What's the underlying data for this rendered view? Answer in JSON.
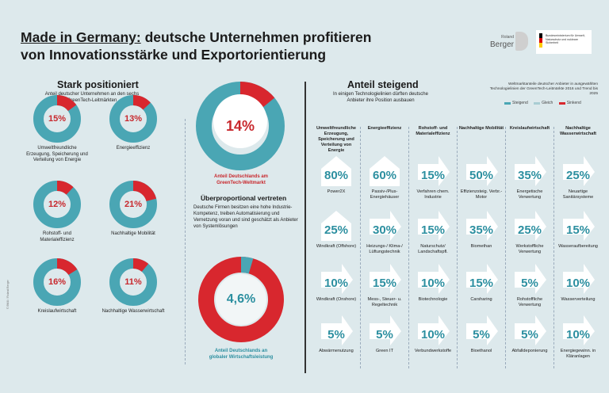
{
  "title": {
    "underlined": "Made in Germany:",
    "rest": " deutsche Unternehmen profitieren",
    "line2": "von Innovationsstärke und Exportorientierung"
  },
  "logos": {
    "rb_small": "Roland",
    "rb_big": "Berger",
    "ministry": "Bundesministerium für Umwelt, Naturschutz und nukleare Sicherheit"
  },
  "colors": {
    "teal": "#4aa6b4",
    "red": "#d8272e",
    "accent_text": "#c8282d",
    "value_text": "#2c8fa0"
  },
  "left": {
    "heading": "Stark positioniert",
    "subtitle": "Anteil deutscher Unternehmen an den sechs GreenTech-Leitmärkten",
    "donuts": [
      {
        "pct": "15%",
        "share": 0.15,
        "label": "Umweltfreundliche Erzeugung, Speicherung und Verteilung von Energie"
      },
      {
        "pct": "13%",
        "share": 0.13,
        "label": "Energieeffizienz"
      },
      {
        "pct": "12%",
        "share": 0.12,
        "label": "Rohstoff- und Materialeffizienz"
      },
      {
        "pct": "21%",
        "share": 0.21,
        "label": "Nachhaltige Mobilität"
      },
      {
        "pct": "16%",
        "share": 0.16,
        "label": "Kreislaufwirtschaft"
      },
      {
        "pct": "11%",
        "share": 0.11,
        "label": "Nachhaltige Wasserwirtschaft"
      }
    ]
  },
  "middle": {
    "big1": {
      "pct": "14%",
      "share": 0.14,
      "caption": "Anteil Deutschlands am GreenTech-Weltmarkt"
    },
    "heading": "Überproportional vertreten",
    "text": "Deutsche Firmen besitzen eine hohe Industrie-Kompetenz, treiben Automatisierung und Vernetzung voran und sind geschätzt als Anbieter von Systemlösungen",
    "big2": {
      "pct": "4,6%",
      "share": 0.046,
      "caption": "Anteil Deutschlands an globaler Wirtschaftsleistung"
    }
  },
  "right": {
    "heading": "Anteil steigend",
    "subtitle": "In einigen Technologielinien dürften deutsche Anbieter ihre Position ausbauen",
    "note": "Weltmarktanteile deutscher Anbieter in ausgewählten Technologielinien der GreenTech-Leitmärkte 2016 und Trend bis 2025",
    "legend": [
      "Steigend",
      "Gleich",
      "Sinkend"
    ],
    "columns": [
      {
        "head": "Umweltfreundliche Erzeugung, Speicherung und Verteilung von Energie",
        "items": [
          {
            "v": "80%",
            "l": "Power2X",
            "t": "up"
          },
          {
            "v": "25%",
            "l": "Windkraft (Offshore)",
            "t": "up"
          },
          {
            "v": "10%",
            "l": "Windkraft (Onshore)",
            "t": "flat"
          },
          {
            "v": "5%",
            "l": "Abwärmenutzung",
            "t": "flat"
          }
        ]
      },
      {
        "head": "Energieeffizienz",
        "items": [
          {
            "v": "60%",
            "l": "Passiv-/Plus-Energiehäuser",
            "t": "up"
          },
          {
            "v": "30%",
            "l": "Heizungs-/ Klima-/ Lüftungstechnik",
            "t": "flat"
          },
          {
            "v": "15%",
            "l": "Mess-, Steuer- u. Regeltechnik",
            "t": "flat"
          },
          {
            "v": "5%",
            "l": "Green IT",
            "t": "flat"
          }
        ]
      },
      {
        "head": "Rohstoff- und Materialeffizienz",
        "items": [
          {
            "v": "15%",
            "l": "Verfahren chem. Industrie",
            "t": "flat"
          },
          {
            "v": "15%",
            "l": "Naturschutz/ Landschaftspfl.",
            "t": "flat"
          },
          {
            "v": "10%",
            "l": "Biotechnologie",
            "t": "flat"
          },
          {
            "v": "10%",
            "l": "Verbundwerkstoffe",
            "t": "flat"
          }
        ]
      },
      {
        "head": "Nachhaltige Mobilität",
        "items": [
          {
            "v": "50%",
            "l": "Effizienzsteig. Verbr.-Motor",
            "t": "flat"
          },
          {
            "v": "35%",
            "l": "Biomethan",
            "t": "flat"
          },
          {
            "v": "15%",
            "l": "Carsharing",
            "t": "flat"
          },
          {
            "v": "5%",
            "l": "Bioethanol",
            "t": "flat"
          }
        ]
      },
      {
        "head": "Kreislaufwirtschaft",
        "items": [
          {
            "v": "35%",
            "l": "Energetische Verwertung",
            "t": "flat"
          },
          {
            "v": "25%",
            "l": "Werkstoffliche Verwertung",
            "t": "flat"
          },
          {
            "v": "5%",
            "l": "Rohstoffliche Verwertung",
            "t": "flat"
          },
          {
            "v": "5%",
            "l": "Abfalldeponierung",
            "t": "flat"
          }
        ]
      },
      {
        "head": "Nachhaltige Wasserwirtschaft",
        "items": [
          {
            "v": "25%",
            "l": "Neuartige Sanitärsysteme",
            "t": "flat"
          },
          {
            "v": "15%",
            "l": "Wasseraufbereitung",
            "t": "flat"
          },
          {
            "v": "10%",
            "l": "Wasserverteilung",
            "t": "flat"
          },
          {
            "v": "10%",
            "l": "Energiegewinn. in Kläranlagen",
            "t": "flat"
          }
        ]
      }
    ]
  }
}
